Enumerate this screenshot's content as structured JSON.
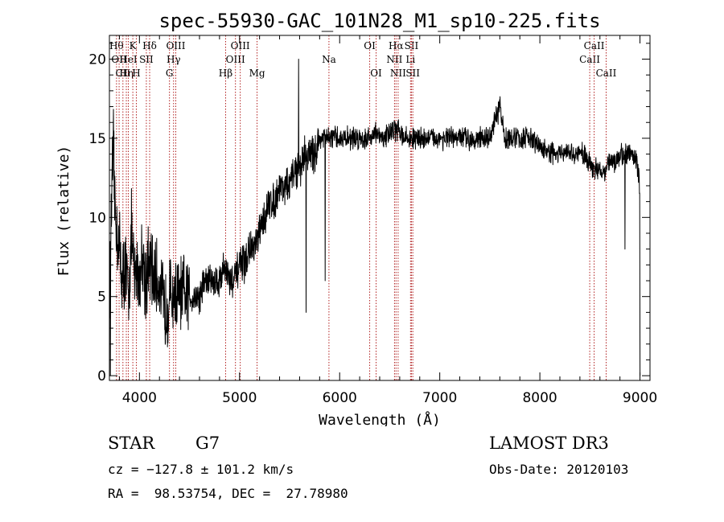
{
  "chart_data": {
    "type": "line",
    "title": "spec-55930-GAC_101N28_M1_sp10-225.fits",
    "xlabel": "Wavelength (Å)",
    "ylabel": "Flux (relative)",
    "xlim": [
      3700,
      9100
    ],
    "ylim": [
      -0.3,
      21.5
    ],
    "x_ticks": [
      4000,
      5000,
      6000,
      7000,
      8000,
      9000
    ],
    "y_ticks": [
      0,
      5,
      10,
      15,
      20
    ],
    "series": [
      {
        "name": "spectrum",
        "x": [
          3700,
          3720,
          3740,
          3760,
          3780,
          3800,
          3830,
          3860,
          3890,
          3920,
          3950,
          3980,
          4000,
          4030,
          4060,
          4100,
          4150,
          4200,
          4250,
          4300,
          4330,
          4360,
          4400,
          4450,
          4500,
          4550,
          4600,
          4650,
          4700,
          4750,
          4800,
          4850,
          4900,
          4950,
          5000,
          5050,
          5100,
          5150,
          5200,
          5250,
          5300,
          5350,
          5400,
          5450,
          5500,
          5550,
          5600,
          5650,
          5700,
          5750,
          5800,
          5850,
          5900,
          5950,
          6000,
          6050,
          6100,
          6150,
          6200,
          6250,
          6300,
          6350,
          6400,
          6450,
          6500,
          6550,
          6600,
          6650,
          6700,
          6750,
          6800,
          6900,
          7000,
          7100,
          7200,
          7300,
          7400,
          7500,
          7550,
          7600,
          7650,
          7700,
          7800,
          7900,
          8000,
          8100,
          8200,
          8300,
          8400,
          8450,
          8500,
          8550,
          8600,
          8650,
          8700,
          8750,
          8800,
          8850,
          8900,
          8950,
          9000
        ],
        "y": [
          5,
          11,
          14,
          10,
          9,
          8,
          6,
          7,
          5,
          9,
          6,
          7,
          6,
          8,
          6,
          7,
          6,
          6,
          4,
          5,
          5,
          5,
          5,
          5,
          5,
          5,
          5,
          6,
          6,
          6,
          6,
          7,
          6,
          6,
          7,
          7,
          8,
          8,
          9,
          10,
          11,
          11,
          12,
          12,
          12,
          13,
          13,
          14,
          14,
          14,
          15,
          15,
          15,
          15,
          15,
          15,
          15,
          15,
          15,
          15,
          15,
          15.5,
          15,
          15,
          15.5,
          15.5,
          15.5,
          15,
          15,
          15,
          15,
          15,
          15,
          15,
          15,
          15,
          15,
          15,
          16,
          17,
          15,
          15,
          15,
          15,
          14.5,
          14,
          14,
          14,
          14,
          14,
          13.5,
          13,
          13,
          13,
          13.5,
          13.5,
          14,
          14,
          14,
          14,
          12
        ],
        "absorption_spikes": [
          {
            "x": 3710,
            "y": 0
          },
          {
            "x": 5590,
            "y": 20
          },
          {
            "x": 5665,
            "y": 4
          },
          {
            "x": 5855,
            "y": 6
          },
          {
            "x": 8850,
            "y": 8
          },
          {
            "x": 9000,
            "y": 0
          }
        ]
      }
    ],
    "line_markers": [
      {
        "x": 3771,
        "label": "Hθ",
        "row": 1
      },
      {
        "x": 3797,
        "label": "OII",
        "row": 2
      },
      {
        "x": 3835,
        "label": "CII",
        "row": 3
      },
      {
        "x": 3869,
        "label": "Hη",
        "row": 3
      },
      {
        "x": 3889,
        "label": "HeI",
        "row": 2
      },
      {
        "x": 3934,
        "label": "K",
        "row": 1
      },
      {
        "x": 3969,
        "label": "H",
        "row": 3
      },
      {
        "x": 4069,
        "label": "SII",
        "row": 2
      },
      {
        "x": 4102,
        "label": "Hδ",
        "row": 1
      },
      {
        "x": 4300,
        "label": "G",
        "row": 3
      },
      {
        "x": 4341,
        "label": "Hγ",
        "row": 2
      },
      {
        "x": 4363,
        "label": "OIII",
        "row": 1
      },
      {
        "x": 4861,
        "label": "Hβ",
        "row": 3
      },
      {
        "x": 4959,
        "label": "OIII",
        "row": 2
      },
      {
        "x": 5007,
        "label": "OIII",
        "row": 1
      },
      {
        "x": 5175,
        "label": "Mg",
        "row": 3
      },
      {
        "x": 5893,
        "label": "Na",
        "row": 2
      },
      {
        "x": 6300,
        "label": "OI",
        "row": 1
      },
      {
        "x": 6364,
        "label": "OI",
        "row": 3
      },
      {
        "x": 6548,
        "label": "NII",
        "row": 2
      },
      {
        "x": 6563,
        "label": "Hα",
        "row": 1
      },
      {
        "x": 6584,
        "label": "NII",
        "row": 3
      },
      {
        "x": 6708,
        "label": "Li",
        "row": 2
      },
      {
        "x": 6717,
        "label": "SII",
        "row": 1
      },
      {
        "x": 6731,
        "label": "SII",
        "row": 3
      },
      {
        "x": 8498,
        "label": "CaII",
        "row": 2
      },
      {
        "x": 8542,
        "label": "CaII",
        "row": 1
      },
      {
        "x": 8662,
        "label": "CaII",
        "row": 3
      }
    ],
    "colors": {
      "spectrum": "#000000",
      "markers": "#b22222",
      "axes": "#000000"
    }
  },
  "info": {
    "object_class": "STAR",
    "subclass": "G7",
    "survey": "LAMOST DR3",
    "redshift": "cz = −127.8 ± 101.2 km/s",
    "obs_date": "Obs-Date: 20120103",
    "coords": "RA =  98.53754, DEC =  27.78980"
  }
}
